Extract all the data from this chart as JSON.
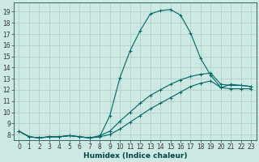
{
  "xlabel": "Humidex (Indice chaleur)",
  "background_color": "#cce9e4",
  "grid_color": "#b0c8c4",
  "line_color": "#006666",
  "xlim": [
    -0.5,
    23.5
  ],
  "ylim": [
    7.5,
    19.8
  ],
  "yticks": [
    8,
    9,
    10,
    11,
    12,
    13,
    14,
    15,
    16,
    17,
    18,
    19
  ],
  "xticks": [
    0,
    1,
    2,
    3,
    4,
    5,
    6,
    7,
    8,
    9,
    10,
    11,
    12,
    13,
    14,
    15,
    16,
    17,
    18,
    19,
    20,
    21,
    22,
    23
  ],
  "line1_x": [
    0,
    1,
    2,
    3,
    4,
    5,
    6,
    7,
    8,
    9,
    10,
    11,
    12,
    13,
    14,
    15,
    16,
    17,
    18,
    19,
    20,
    21,
    22,
    23
  ],
  "line1_y": [
    8.3,
    7.8,
    7.7,
    7.8,
    7.8,
    7.9,
    7.8,
    7.7,
    7.8,
    9.7,
    13.1,
    15.5,
    17.3,
    18.8,
    19.1,
    19.2,
    18.7,
    17.1,
    14.8,
    13.3,
    12.2,
    12.5,
    12.4,
    12.3
  ],
  "line2_x": [
    0,
    1,
    2,
    3,
    4,
    5,
    6,
    7,
    8,
    9,
    10,
    11,
    12,
    13,
    14,
    15,
    16,
    17,
    18,
    19,
    20,
    21,
    22,
    23
  ],
  "line2_y": [
    8.3,
    7.8,
    7.7,
    7.8,
    7.8,
    7.9,
    7.8,
    7.7,
    7.9,
    8.3,
    9.2,
    10.0,
    10.8,
    11.5,
    12.0,
    12.5,
    12.9,
    13.2,
    13.4,
    13.5,
    12.5,
    12.4,
    12.4,
    12.3
  ],
  "line3_x": [
    0,
    1,
    2,
    3,
    4,
    5,
    6,
    7,
    8,
    9,
    10,
    11,
    12,
    13,
    14,
    15,
    16,
    17,
    18,
    19,
    20,
    21,
    22,
    23
  ],
  "line3_y": [
    8.3,
    7.8,
    7.7,
    7.8,
    7.8,
    7.9,
    7.8,
    7.7,
    7.8,
    8.0,
    8.5,
    9.1,
    9.7,
    10.3,
    10.8,
    11.3,
    11.8,
    12.3,
    12.6,
    12.8,
    12.2,
    12.1,
    12.1,
    12.1
  ],
  "tick_fontsize": 5.5,
  "xlabel_fontsize": 6.5
}
